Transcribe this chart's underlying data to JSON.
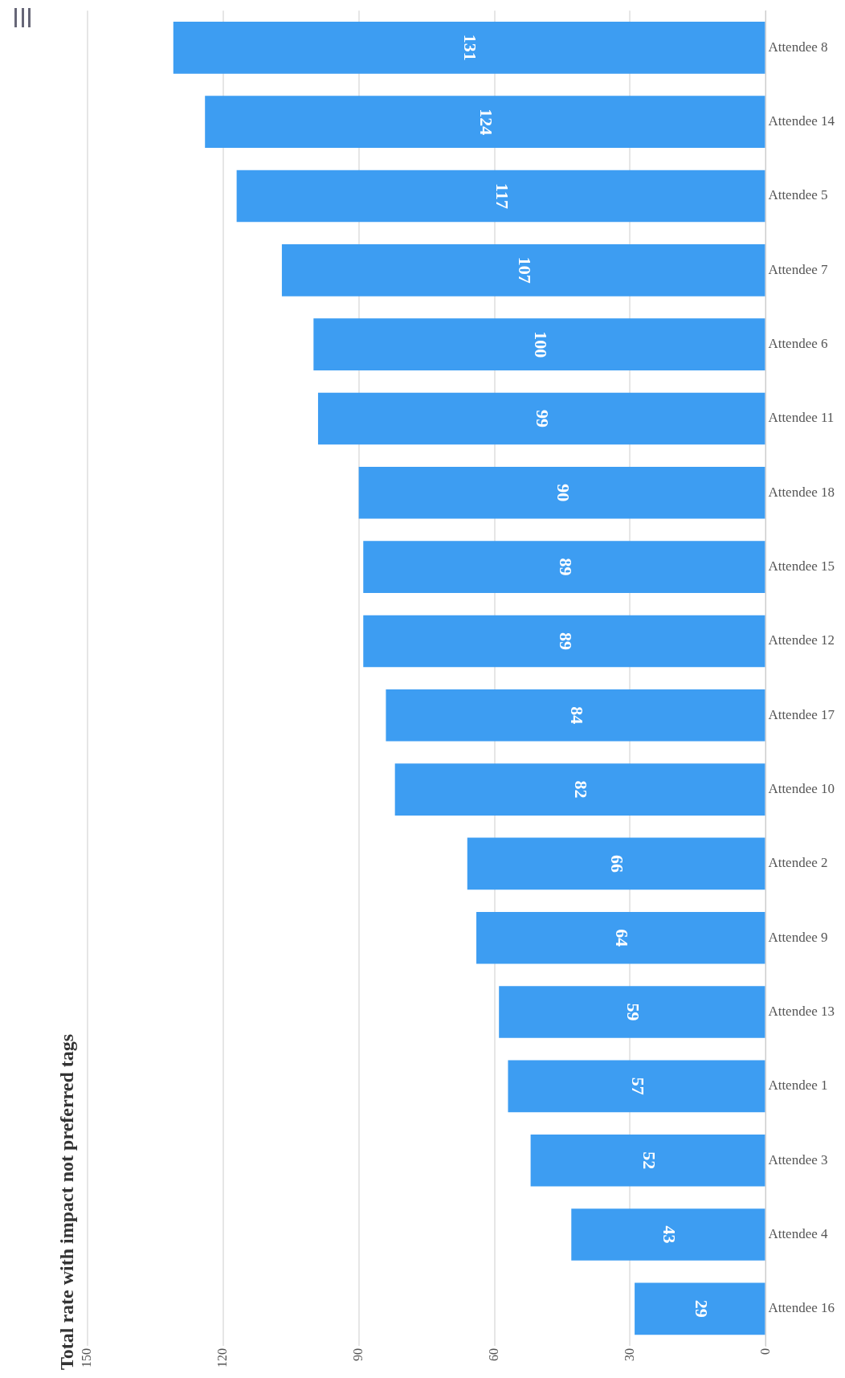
{
  "chart_data": {
    "type": "bar",
    "orientation": "horizontal",
    "title": "Total rate with impact not preferred tags",
    "categories": [
      "Attendee 8",
      "Attendee 14",
      "Attendee 5",
      "Attendee 7",
      "Attendee 6",
      "Attendee 11",
      "Attendee 18",
      "Attendee 15",
      "Attendee 12",
      "Attendee 17",
      "Attendee 10",
      "Attendee 2",
      "Attendee 9",
      "Attendee 13",
      "Attendee 1",
      "Attendee 3",
      "Attendee 4",
      "Attendee 16"
    ],
    "values": [
      131,
      124,
      117,
      107,
      100,
      99,
      90,
      89,
      89,
      84,
      82,
      66,
      64,
      59,
      57,
      52,
      43,
      29
    ],
    "color": "#3d9df2",
    "xlim": [
      150,
      0
    ],
    "xticks": [
      0,
      30,
      60,
      90,
      120,
      150
    ],
    "grid": "x",
    "legend": false,
    "data_labels": true
  }
}
